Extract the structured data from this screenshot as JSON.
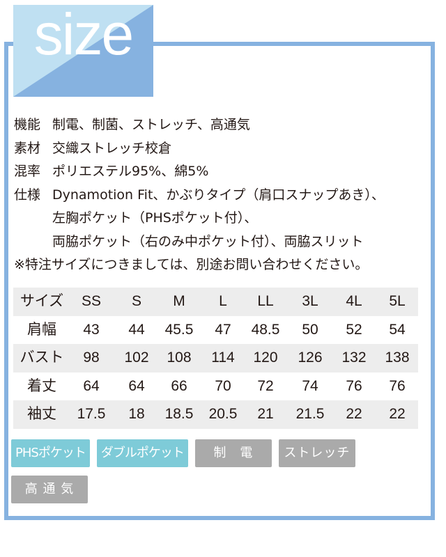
{
  "header": {
    "title": "size",
    "colors": {
      "frame": "#86b2e0",
      "title_light": "#bfe0f2",
      "title_dark": "#86b2e0"
    }
  },
  "spec": {
    "lines": [
      {
        "key": "機能",
        "value": "制電、制菌、ストレッチ、高通気"
      },
      {
        "key": "素材",
        "value": "交織ストレッチ校倉"
      },
      {
        "key": "混率",
        "value": "ポリエステル95%、綿5%"
      },
      {
        "key": "仕様",
        "value": "Dynamotion Fit、かぶりタイプ（肩口スナップあき）、"
      }
    ],
    "continuation": [
      "左胸ポケット（PHSポケット付）、",
      "両脇ポケット（右のみ中ポケット付）、両脇スリット"
    ],
    "note": "※特注サイズにつきましては、別途お問い合わせください。"
  },
  "size_table": {
    "header": [
      "サイズ",
      "SS",
      "S",
      "M",
      "L",
      "LL",
      "3L",
      "4L",
      "5L"
    ],
    "rows": [
      [
        "肩幅",
        "43",
        "44",
        "45.5",
        "47",
        "48.5",
        "50",
        "52",
        "54"
      ],
      [
        "バスト",
        "98",
        "102",
        "108",
        "114",
        "120",
        "126",
        "132",
        "138"
      ],
      [
        "着丈",
        "64",
        "64",
        "66",
        "70",
        "72",
        "74",
        "76",
        "76"
      ],
      [
        "袖丈",
        "17.5",
        "18",
        "18.5",
        "20.5",
        "21",
        "21.5",
        "22",
        "22"
      ]
    ]
  },
  "tags": [
    {
      "label": "PHSポケット",
      "color": "#7ecbd8"
    },
    {
      "label": "ダブルポケット",
      "color": "#7ecbd8"
    },
    {
      "label": "制　電",
      "color": "#aaaaaa"
    },
    {
      "label": "ストレッチ",
      "color": "#aaaaaa"
    },
    {
      "label": "高 通 気",
      "color": "#aaaaaa"
    }
  ]
}
